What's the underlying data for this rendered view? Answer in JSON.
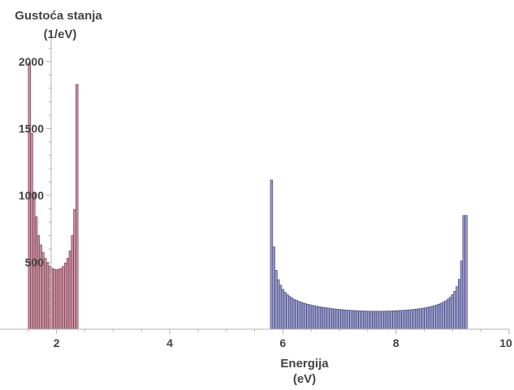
{
  "chart_data": {
    "type": "bar",
    "ylabel_line1": "Gustoća stanja",
    "ylabel_line2": "(1/eV)",
    "xlabel_line1": "Energija",
    "xlabel_line2": "(eV)",
    "xlim": [
      1.0,
      10.0
    ],
    "ylim": [
      0,
      2200
    ],
    "bin_width": 0.04,
    "grid": false,
    "x_ticks": [
      2,
      4,
      6,
      8,
      10
    ],
    "y_ticks": [
      500,
      1000,
      1500,
      2000
    ],
    "colors": {
      "series_red_fill": "#c7909e",
      "series_red_edge": "#6e3346",
      "series_blue_fill": "#9b9cc9",
      "series_blue_edge": "#34386e",
      "axis": "#b3b3b3",
      "text": "#444444"
    },
    "series": [
      {
        "x": [
          1.5,
          1.54,
          1.58,
          1.62,
          1.66,
          1.7,
          1.74,
          1.78,
          1.82,
          1.86,
          1.9,
          1.94,
          1.98,
          2.02,
          2.06,
          2.1,
          2.14,
          2.18,
          2.22,
          2.26,
          2.3,
          2.34
        ],
        "values": [
          1990,
          1465,
          1015,
          840,
          700,
          630,
          575,
          530,
          495,
          470,
          455,
          448,
          445,
          448,
          455,
          470,
          495,
          530,
          585,
          700,
          895,
          1830
        ]
      },
      {
        "x": [
          5.78,
          5.82,
          5.86,
          5.9,
          5.94,
          5.98,
          6.02,
          6.06,
          6.1,
          6.14,
          6.18,
          6.22,
          6.26,
          6.3,
          6.34,
          6.38,
          6.42,
          6.46,
          6.5,
          6.54,
          6.58,
          6.62,
          6.66,
          6.7,
          6.74,
          6.78,
          6.82,
          6.86,
          6.9,
          6.94,
          6.98,
          7.02,
          7.06,
          7.1,
          7.14,
          7.18,
          7.22,
          7.26,
          7.3,
          7.34,
          7.38,
          7.42,
          7.46,
          7.5,
          7.54,
          7.58,
          7.62,
          7.66,
          7.7,
          7.74,
          7.78,
          7.82,
          7.86,
          7.9,
          7.94,
          7.98,
          8.02,
          8.06,
          8.1,
          8.14,
          8.18,
          8.22,
          8.26,
          8.3,
          8.34,
          8.38,
          8.42,
          8.46,
          8.5,
          8.54,
          8.58,
          8.62,
          8.66,
          8.7,
          8.74,
          8.78,
          8.82,
          8.86,
          8.9,
          8.94,
          8.98,
          9.02,
          9.06,
          9.1,
          9.14,
          9.18,
          9.22
        ],
        "values": [
          1115,
          615,
          440,
          370,
          328,
          297,
          275,
          258,
          244,
          233,
          223,
          215,
          208,
          202,
          196,
          191,
          186,
          182,
          178,
          175,
          171,
          168,
          165,
          162,
          160,
          158,
          155,
          153,
          151,
          149,
          148,
          146,
          145,
          143,
          142,
          141,
          140,
          139,
          138,
          137,
          136,
          136,
          135,
          135,
          134,
          134,
          134,
          134,
          134,
          134,
          135,
          135,
          136,
          136,
          137,
          138,
          139,
          140,
          141,
          142,
          143,
          145,
          146,
          148,
          150,
          152,
          154,
          157,
          160,
          163,
          167,
          171,
          176,
          181,
          187,
          194,
          202,
          212,
          224,
          239,
          258,
          283,
          318,
          372,
          510,
          850,
          850
        ]
      }
    ]
  }
}
